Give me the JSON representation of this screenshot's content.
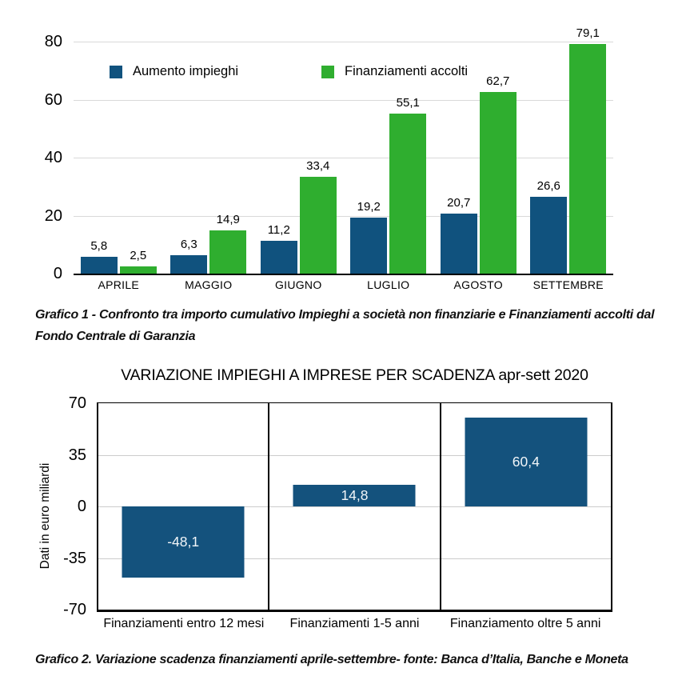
{
  "captions": {
    "grafico1": "Grafico 1 - Confronto tra importo cumulativo Impieghi a società non finanziarie e Finanziamenti accolti dal Fondo Centrale di Garanzia",
    "grafico2": "Grafico 2. Variazione scadenza finanziamenti aprile-settembre- fonte: Banca d’Italia, Banche e Moneta"
  },
  "colors": {
    "blue": "#10527E",
    "green": "#2FAE2F",
    "blue_chart2": "#14527D",
    "grid_chart1": "#D9D9D9",
    "grid_chart2": "#CCCCCC",
    "axis_black": "#000000"
  },
  "chart_data": [
    {
      "type": "bar",
      "title": "",
      "categories": [
        "APRILE",
        "MAGGIO",
        "GIUGNO",
        "LUGLIO",
        "AGOSTO",
        "SETTEMBRE"
      ],
      "series": [
        {
          "name": "Aumento impieghi",
          "color": "#10527E",
          "values": [
            5.8,
            6.3,
            11.2,
            19.2,
            20.7,
            26.6
          ],
          "labels": [
            "5,8",
            "6,3",
            "11,2",
            "19,2",
            "20,7",
            "26,6"
          ]
        },
        {
          "name": "Finanziamenti accolti",
          "color": "#2FAE2F",
          "values": [
            2.5,
            14.9,
            33.4,
            55.1,
            62.7,
            79.1
          ],
          "labels": [
            "2,5",
            "14,9",
            "33,4",
            "55,1",
            "62,7",
            "79,1"
          ]
        }
      ],
      "yticks": [
        80,
        60,
        40,
        20,
        0
      ],
      "ylim": [
        0,
        80
      ],
      "grid": true,
      "legend_position": "top-inside",
      "xlabel": "",
      "ylabel": ""
    },
    {
      "type": "bar",
      "title": "VARIAZIONE IMPIEGHI A IMPRESE PER SCADENZA apr-sett 2020",
      "categories": [
        "Finanziamenti entro 12 mesi",
        "Finanziamenti 1-5 anni",
        "Finanziamento oltre 5 anni"
      ],
      "values": [
        -48.1,
        14.8,
        60.4
      ],
      "labels": [
        "-48,1",
        "14,8",
        "60,4"
      ],
      "yticks": [
        70,
        35,
        0,
        -35,
        -70
      ],
      "ylim": [
        -70,
        70
      ],
      "grid": true,
      "bar_color": "#14527D",
      "xlabel": "",
      "ylabel": "Dati in euro miliardi"
    }
  ]
}
